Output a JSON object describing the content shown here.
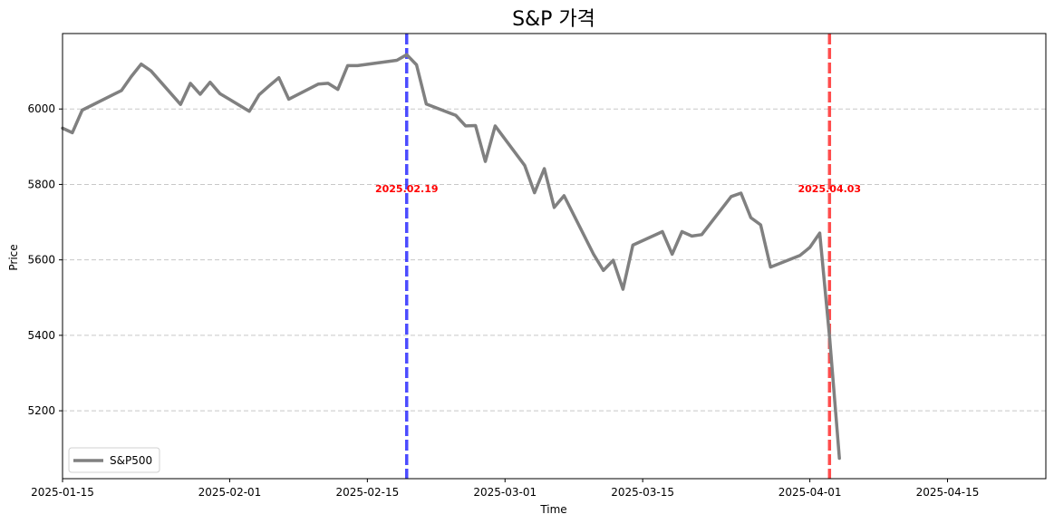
{
  "chart_data": {
    "type": "line",
    "title": "S&P 가격",
    "xlabel": "Time",
    "ylabel": "Price",
    "xlim": [
      "2025-01-15",
      "2025-04-25"
    ],
    "ylim": [
      5020,
      6200
    ],
    "grid": "y-dashed",
    "legend_position": "lower-left",
    "x_ticks": [
      "2025-01-15",
      "2025-02-01",
      "2025-02-15",
      "2025-03-01",
      "2025-03-15",
      "2025-04-01",
      "2025-04-15"
    ],
    "y_ticks": [
      5200,
      5400,
      5600,
      5800,
      6000
    ],
    "series": [
      {
        "name": "S&P500",
        "color": "#808080",
        "x": [
          "2025-01-15",
          "2025-01-16",
          "2025-01-17",
          "2025-01-21",
          "2025-01-22",
          "2025-01-23",
          "2025-01-24",
          "2025-01-27",
          "2025-01-28",
          "2025-01-29",
          "2025-01-30",
          "2025-01-31",
          "2025-02-03",
          "2025-02-04",
          "2025-02-05",
          "2025-02-06",
          "2025-02-07",
          "2025-02-10",
          "2025-02-11",
          "2025-02-12",
          "2025-02-13",
          "2025-02-14",
          "2025-02-18",
          "2025-02-19",
          "2025-02-20",
          "2025-02-21",
          "2025-02-24",
          "2025-02-25",
          "2025-02-26",
          "2025-02-27",
          "2025-02-28",
          "2025-03-03",
          "2025-03-04",
          "2025-03-05",
          "2025-03-06",
          "2025-03-07",
          "2025-03-10",
          "2025-03-11",
          "2025-03-12",
          "2025-03-13",
          "2025-03-14",
          "2025-03-17",
          "2025-03-18",
          "2025-03-19",
          "2025-03-20",
          "2025-03-21",
          "2025-03-24",
          "2025-03-25",
          "2025-03-26",
          "2025-03-27",
          "2025-03-28",
          "2025-03-31",
          "2025-04-01",
          "2025-04-02",
          "2025-04-03",
          "2025-04-04"
        ],
        "y": [
          5949,
          5937,
          5997,
          6049,
          6086,
          6119,
          6101,
          6012,
          6068,
          6039,
          6071,
          6041,
          5994,
          6038,
          6061,
          6083,
          6026,
          6066,
          6068,
          6052,
          6115,
          6115,
          6129,
          6144,
          6117,
          6013,
          5983,
          5955,
          5956,
          5861,
          5955,
          5850,
          5778,
          5842,
          5739,
          5770,
          5615,
          5572,
          5599,
          5522,
          5639,
          5675,
          5615,
          5675,
          5663,
          5667,
          5768,
          5777,
          5712,
          5693,
          5581,
          5612,
          5633,
          5671,
          5397,
          5074
        ]
      }
    ],
    "vlines": [
      {
        "x": "2025-02-19",
        "label": "2025.02.19",
        "color": "#0000ff"
      },
      {
        "x": "2025-04-03",
        "label": "2025.04.03",
        "color": "#ff0000"
      }
    ]
  }
}
